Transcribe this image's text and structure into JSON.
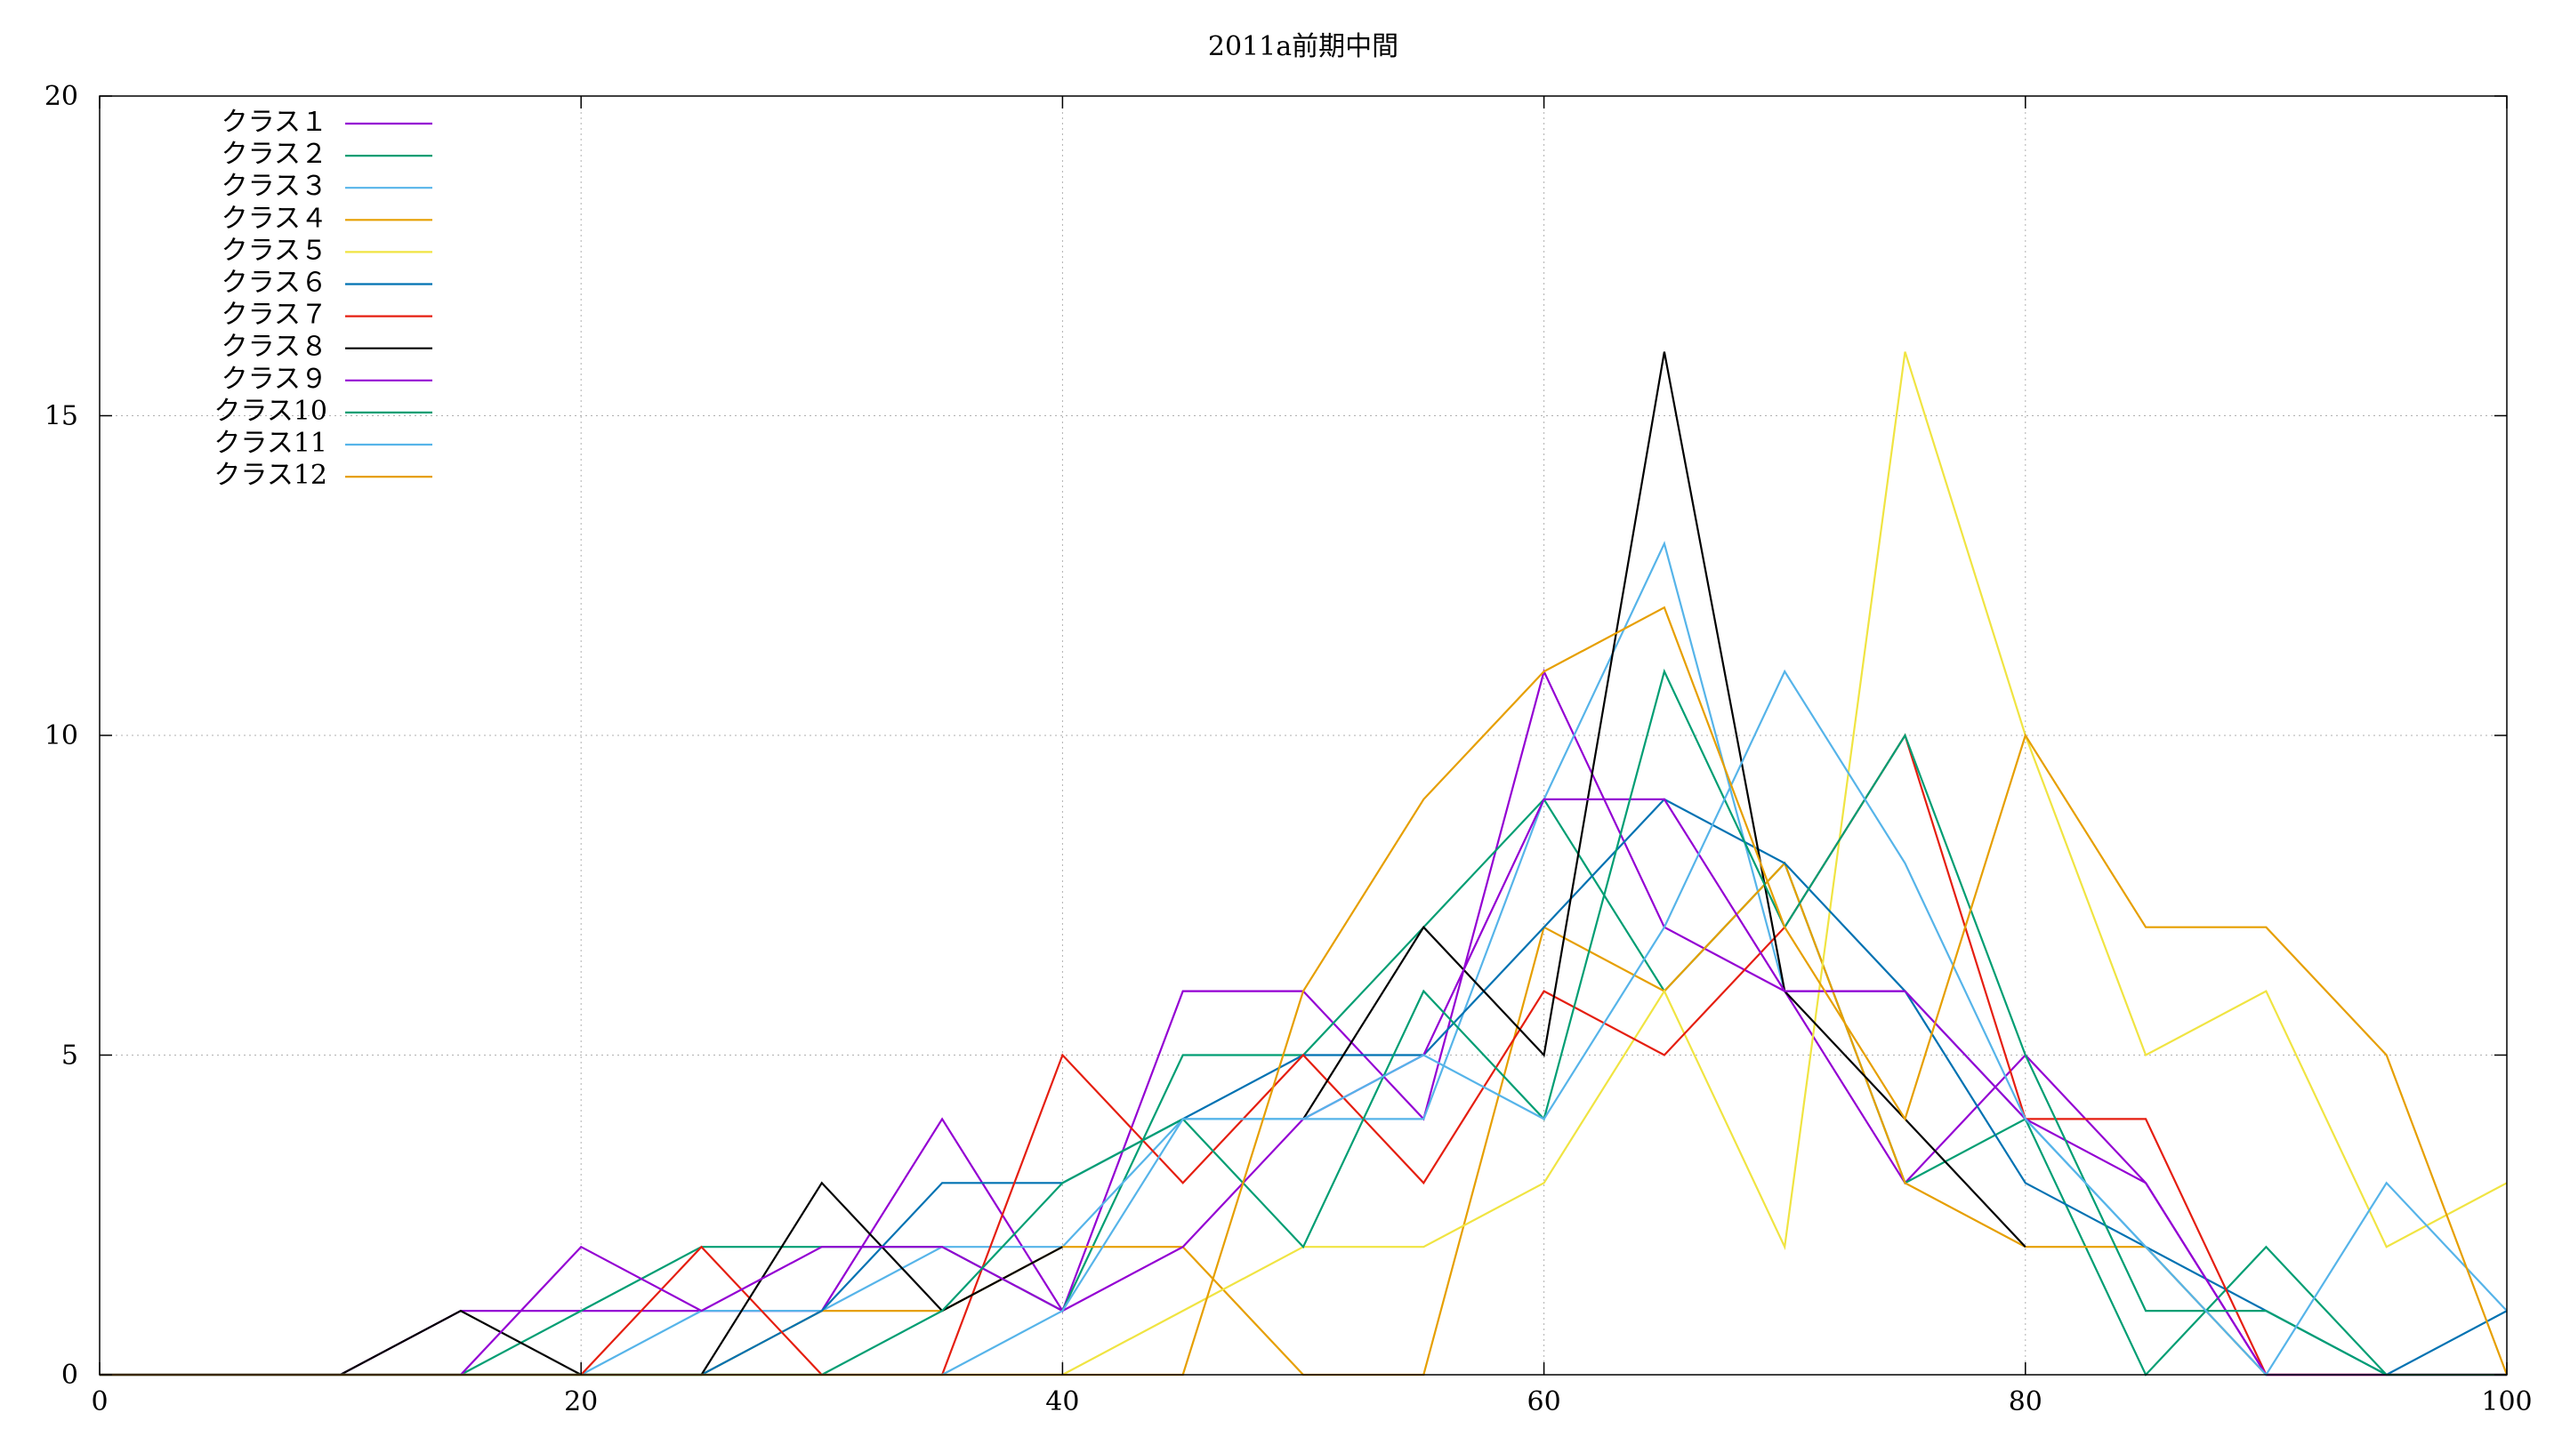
{
  "chart_data": {
    "type": "line",
    "title": "2011a前期中間",
    "xlabel": "",
    "ylabel": "",
    "xlim": [
      0,
      100
    ],
    "ylim": [
      0,
      20
    ],
    "x_ticks": [
      "0",
      "20",
      "40",
      "60",
      "80",
      "100"
    ],
    "y_ticks": [
      "0",
      "5",
      "10",
      "15",
      "20"
    ],
    "grid": true,
    "legend_position": "top-left",
    "x": [
      0,
      5,
      10,
      15,
      20,
      25,
      30,
      35,
      40,
      45,
      50,
      55,
      60,
      65,
      70,
      75,
      80,
      85,
      90,
      95,
      100
    ],
    "series": [
      {
        "name": "クラス１",
        "color": "#9400d3",
        "values": [
          0,
          0,
          0,
          1,
          1,
          1,
          1,
          4,
          1,
          6,
          6,
          4,
          11,
          7,
          6,
          3,
          5,
          3,
          0,
          0,
          0
        ]
      },
      {
        "name": "クラス２",
        "color": "#009e73",
        "values": [
          0,
          0,
          0,
          0,
          1,
          2,
          2,
          2,
          1,
          5,
          5,
          7,
          9,
          6,
          8,
          3,
          4,
          0,
          2,
          0,
          0
        ]
      },
      {
        "name": "クラス３",
        "color": "#56b4e9",
        "values": [
          0,
          0,
          0,
          0,
          0,
          1,
          1,
          2,
          2,
          4,
          4,
          4,
          9,
          13,
          6,
          6,
          4,
          2,
          0,
          0,
          0
        ]
      },
      {
        "name": "クラス４",
        "color": "#e69f00",
        "values": [
          0,
          0,
          0,
          0,
          0,
          0,
          1,
          1,
          2,
          2,
          0,
          0,
          7,
          6,
          8,
          3,
          2,
          2,
          0,
          0,
          0
        ]
      },
      {
        "name": "クラス５",
        "color": "#f0e442",
        "values": [
          0,
          0,
          0,
          0,
          0,
          0,
          0,
          0,
          0,
          1,
          2,
          2,
          3,
          6,
          2,
          16,
          10,
          5,
          6,
          2,
          3
        ]
      },
      {
        "name": "クラス６",
        "color": "#0072b2",
        "values": [
          0,
          0,
          0,
          0,
          0,
          0,
          1,
          3,
          3,
          4,
          5,
          5,
          7,
          9,
          8,
          6,
          3,
          2,
          1,
          0,
          1
        ]
      },
      {
        "name": "クラス７",
        "color": "#e51e10",
        "values": [
          0,
          0,
          0,
          0,
          0,
          2,
          0,
          0,
          5,
          3,
          5,
          3,
          6,
          5,
          7,
          10,
          4,
          4,
          0,
          0,
          0
        ]
      },
      {
        "name": "クラス８",
        "color": "#000000",
        "values": [
          0,
          0,
          0,
          1,
          0,
          0,
          3,
          1,
          2,
          null,
          4,
          7,
          5,
          16,
          6,
          4,
          2,
          null,
          null,
          null,
          null
        ]
      },
      {
        "name": "クラス９",
        "color": "#9400d3",
        "values": [
          0,
          0,
          0,
          0,
          2,
          1,
          2,
          2,
          1,
          2,
          4,
          5,
          9,
          9,
          6,
          6,
          4,
          3,
          0,
          0,
          0
        ]
      },
      {
        "name": "クラス10",
        "color": "#009e73",
        "values": [
          0,
          0,
          0,
          0,
          0,
          0,
          0,
          1,
          3,
          4,
          2,
          6,
          4,
          11,
          7,
          10,
          5,
          1,
          1,
          0,
          0
        ]
      },
      {
        "name": "クラス11",
        "color": "#56b4e9",
        "values": [
          0,
          0,
          0,
          0,
          0,
          0,
          0,
          0,
          1,
          4,
          4,
          5,
          4,
          7,
          11,
          8,
          4,
          2,
          0,
          3,
          1
        ]
      },
      {
        "name": "クラス12",
        "color": "#e69f00",
        "values": [
          0,
          0,
          0,
          0,
          0,
          0,
          0,
          0,
          0,
          0,
          6,
          9,
          11,
          12,
          7,
          4,
          10,
          7,
          7,
          5,
          0
        ]
      }
    ]
  }
}
